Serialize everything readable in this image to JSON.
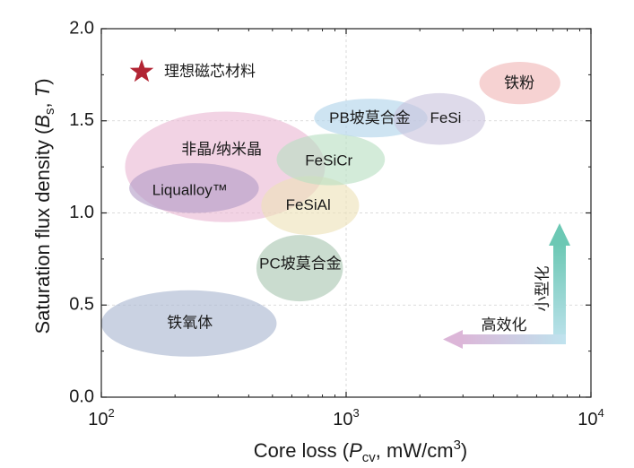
{
  "chart_data": {
    "type": "scatter",
    "xscale": "log",
    "xlim": [
      100,
      10000
    ],
    "ylim": [
      0,
      2.0
    ],
    "grid": true,
    "xlabel_main": "Core loss (",
    "xlabel_var": "P",
    "xlabel_sub": "cv",
    "xlabel_rest": ", mW/cm",
    "xlabel_sup": "3",
    "xlabel_end": ")",
    "ylabel_main": "Saturation flux density (",
    "ylabel_var": "B",
    "ylabel_sub": "s",
    "ylabel_sep": ", ",
    "ylabel_unit": "T",
    "ylabel_end": ")",
    "x_ticks": [
      {
        "base": "10",
        "exp": "2",
        "value": 100
      },
      {
        "base": "10",
        "exp": "3",
        "value": 1000
      },
      {
        "base": "10",
        "exp": "4",
        "value": 10000
      }
    ],
    "y_ticks": [
      {
        "label": "0.0",
        "value": 0.0
      },
      {
        "label": "0.5",
        "value": 0.5
      },
      {
        "label": "1.0",
        "value": 1.0
      },
      {
        "label": "1.5",
        "value": 1.5
      },
      {
        "label": "2.0",
        "value": 2.0
      }
    ],
    "regions": [
      {
        "label": "铁氧体",
        "x_range": [
          100,
          520
        ],
        "y_range": [
          0.22,
          0.58
        ],
        "color": "#a9b6d0",
        "label_at": [
          230,
          0.4
        ]
      },
      {
        "label": "PC坡莫合金",
        "x_range": [
          430,
          970
        ],
        "y_range": [
          0.52,
          0.88
        ],
        "color": "#a9c7b2",
        "label_at": [
          650,
          0.72
        ]
      },
      {
        "label": "非晶/纳米晶",
        "x_range": [
          125,
          820
        ],
        "y_range": [
          0.95,
          1.55
        ],
        "color": "#eab8d3",
        "label_at": [
          310,
          1.34
        ]
      },
      {
        "label": "Liqualloy™",
        "x_range": [
          130,
          440
        ],
        "y_range": [
          1.0,
          1.27
        ],
        "color": "#b39dc6",
        "label_at": [
          230,
          1.12
        ]
      },
      {
        "label": "FeSiAl",
        "x_range": [
          450,
          1130
        ],
        "y_range": [
          0.88,
          1.2
        ],
        "color": "#eee2b8",
        "label_at": [
          700,
          1.04
        ]
      },
      {
        "label": "FeSiCr",
        "x_range": [
          520,
          1440
        ],
        "y_range": [
          1.15,
          1.43
        ],
        "color": "#b8dec2",
        "label_at": [
          850,
          1.28
        ]
      },
      {
        "label": "PB坡莫合金",
        "x_range": [
          740,
          2150
        ],
        "y_range": [
          1.41,
          1.62
        ],
        "color": "#b0d4ea",
        "label_at": [
          1250,
          1.51
        ]
      },
      {
        "label": "FeSi",
        "x_range": [
          1560,
          3700
        ],
        "y_range": [
          1.37,
          1.65
        ],
        "color": "#c9c4dd",
        "label_at": [
          2550,
          1.51
        ]
      },
      {
        "label": "铁粉",
        "x_range": [
          3500,
          7500
        ],
        "y_range": [
          1.59,
          1.82
        ],
        "color": "#f1b7b7",
        "label_at": [
          5100,
          1.7
        ]
      }
    ],
    "legend": {
      "symbol": "star",
      "color": "#b22534",
      "label": "理想磁芯材料",
      "placement": "top-left"
    },
    "annotations": {
      "vertical_arrow_label": "小型化",
      "horizontal_arrow_label": "高效化",
      "arrow_colors": {
        "vertical": "#6cc8b4",
        "horizontal": "#dcb6d8"
      }
    }
  }
}
